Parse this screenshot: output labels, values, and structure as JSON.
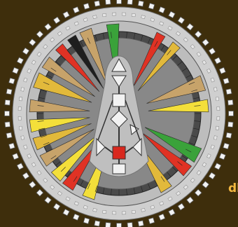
{
  "side_label": "dh",
  "colors": {
    "background": "#3e2e0c",
    "tan": "#c7a36a",
    "tan_light": "#e0c898",
    "gold": "#e2b93b",
    "yellow": "#f3df3a",
    "red": "#e03224",
    "green": "#3aa23a",
    "grey": "#9a9a9a",
    "dark_grey": "#5d5d5d",
    "black": "#1e1e1e",
    "white": "#f2f2f2"
  }
}
